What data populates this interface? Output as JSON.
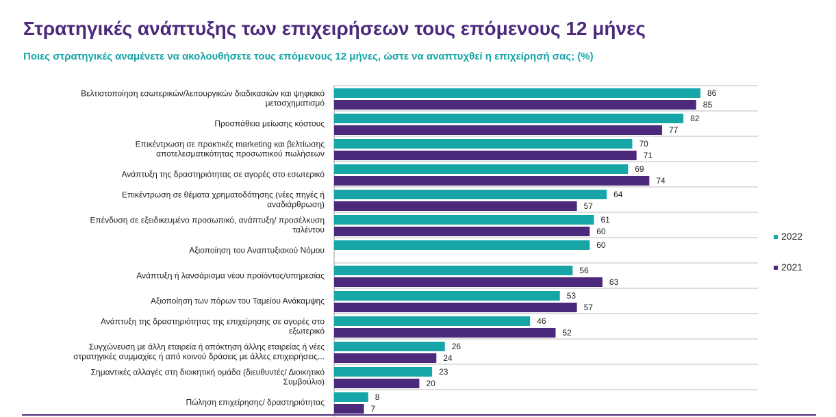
{
  "header": {
    "title": "Στρατηγικές ανάπτυξης των επιχειρήσεων τους επόμενους 12 μήνες",
    "subtitle": "Ποιες στρατηγικές αναμένετε να ακολουθήσετε τους επόμενους 12 μήνες, ώστε να αναπτυχθεί η επιχείρησή σας; (%)"
  },
  "colors": {
    "2022": "#17a5a8",
    "2021": "#4b2a7b",
    "title": "#4b2a7b",
    "subtitle": "#17a5a8"
  },
  "chart_data": {
    "type": "bar",
    "orientation": "horizontal",
    "title": "Στρατηγικές ανάπτυξης των επιχειρήσεων τους επόμενους 12 μήνες",
    "subtitle": "Ποιες στρατηγικές αναμένετε να ακολουθήσετε τους επόμενους 12 μήνες, ώστε να αναπτυχθεί η επιχείρησή σας; (%)",
    "xlim": [
      0,
      100
    ],
    "grid": "horizontal separators",
    "legend_position": "right",
    "categories": [
      [
        "Βελτιστοποίηση εσωτερικών/λειτουργικών διαδικασιών και ψηφιακό",
        "μετασχηματισμό"
      ],
      [
        "Προσπάθεια μείωσης κόστους"
      ],
      [
        "Επικέντρωση σε πρακτικές marketing και βελτίωσης",
        "αποτελεσματικότητας προσωπικού πωλήσεων"
      ],
      [
        "Ανάπτυξη της δραστηριότητας σε αγορές στο εσωτερικό"
      ],
      [
        "Επικέντρωση σε θέματα χρηματοδότησης (νέες πηγές ή",
        "αναδιάρθρωση)"
      ],
      [
        "Επένδυση σε εξειδικευμένο προσωπικό, ανάπτυξη/ προσέλκυση",
        "ταλέντου"
      ],
      [
        "Αξιοποίηση του Αναπτυξιακού Νόμου"
      ],
      [
        "Ανάπτυξη ή λανσάρισμα νέου προϊόντος/υπηρεσίας"
      ],
      [
        "Αξιοποίηση των πόρων του Ταμείου Ανάκαμψης"
      ],
      [
        "Ανάπτυξη της δραστηριότητας της επιχείρησης σε αγορές στο",
        "εξωτερικό"
      ],
      [
        "Συγχώνευση με άλλη εταιρεία ή απόκτηση άλλης εταιρείας ή νέες",
        "στρατηγικές συμμαχίες ή από κοινού δράσεις με άλλες επιχειρήσεις..."
      ],
      [
        "Σημαντικές αλλαγές στη διοικητική ομάδα (διευθυντές/ Διοικητικό",
        "Συμβούλιο)"
      ],
      [
        "Πώληση επιχείρησης/ δραστηριότητας"
      ]
    ],
    "series": [
      {
        "name": "2022",
        "values": [
          86,
          82,
          70,
          69,
          64,
          61,
          60,
          56,
          53,
          46,
          26,
          23,
          8
        ]
      },
      {
        "name": "2021",
        "values": [
          85,
          77,
          71,
          74,
          57,
          60,
          null,
          63,
          57,
          52,
          24,
          20,
          7
        ]
      }
    ]
  }
}
